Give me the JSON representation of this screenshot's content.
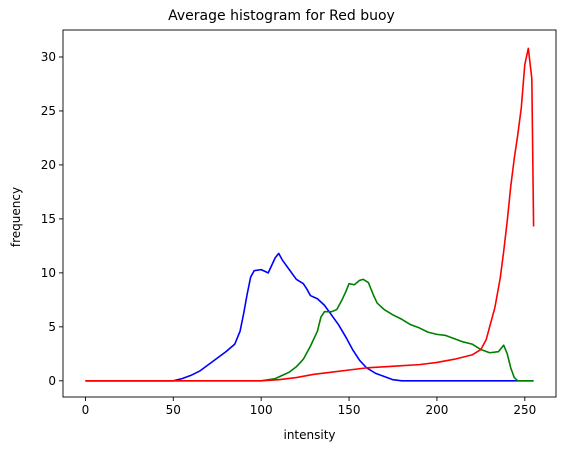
{
  "chart_data": {
    "type": "line",
    "title": "Average histogram for Red buoy",
    "xlabel": "intensity",
    "ylabel": "frequency",
    "xlim": [
      -12.75,
      267.75
    ],
    "ylim": [
      -1.5,
      32.5
    ],
    "xticks": [
      0,
      50,
      100,
      150,
      200,
      250
    ],
    "yticks": [
      0,
      5,
      10,
      15,
      20,
      25,
      30
    ],
    "grid": false,
    "series": [
      {
        "color": "#0000ff",
        "points": [
          [
            0,
            0
          ],
          [
            50,
            0
          ],
          [
            55,
            0.2
          ],
          [
            60,
            0.5
          ],
          [
            65,
            0.9
          ],
          [
            70,
            1.5
          ],
          [
            75,
            2.1
          ],
          [
            80,
            2.7
          ],
          [
            85,
            3.4
          ],
          [
            88,
            4.6
          ],
          [
            90,
            6.2
          ],
          [
            92,
            8.0
          ],
          [
            94,
            9.6
          ],
          [
            96,
            10.2
          ],
          [
            100,
            10.3
          ],
          [
            104,
            10.0
          ],
          [
            108,
            11.4
          ],
          [
            110,
            11.8
          ],
          [
            112,
            11.2
          ],
          [
            116,
            10.3
          ],
          [
            120,
            9.4
          ],
          [
            124,
            9.0
          ],
          [
            126,
            8.5
          ],
          [
            128,
            7.9
          ],
          [
            132,
            7.6
          ],
          [
            136,
            7.0
          ],
          [
            140,
            6.1
          ],
          [
            144,
            5.2
          ],
          [
            148,
            4.1
          ],
          [
            152,
            2.9
          ],
          [
            156,
            1.9
          ],
          [
            160,
            1.2
          ],
          [
            165,
            0.7
          ],
          [
            170,
            0.4
          ],
          [
            175,
            0.1
          ],
          [
            180,
            0
          ],
          [
            255,
            0
          ]
        ]
      },
      {
        "color": "#008000",
        "points": [
          [
            0,
            0
          ],
          [
            100,
            0
          ],
          [
            108,
            0.2
          ],
          [
            112,
            0.5
          ],
          [
            116,
            0.8
          ],
          [
            120,
            1.3
          ],
          [
            124,
            2.0
          ],
          [
            128,
            3.2
          ],
          [
            132,
            4.6
          ],
          [
            134,
            5.9
          ],
          [
            136,
            6.4
          ],
          [
            140,
            6.4
          ],
          [
            143,
            6.6
          ],
          [
            146,
            7.5
          ],
          [
            148,
            8.2
          ],
          [
            150,
            9.0
          ],
          [
            153,
            8.9
          ],
          [
            156,
            9.3
          ],
          [
            158,
            9.4
          ],
          [
            161,
            9.1
          ],
          [
            164,
            7.9
          ],
          [
            166,
            7.2
          ],
          [
            170,
            6.6
          ],
          [
            175,
            6.1
          ],
          [
            180,
            5.7
          ],
          [
            185,
            5.2
          ],
          [
            190,
            4.9
          ],
          [
            195,
            4.5
          ],
          [
            200,
            4.3
          ],
          [
            205,
            4.2
          ],
          [
            210,
            3.9
          ],
          [
            215,
            3.6
          ],
          [
            220,
            3.4
          ],
          [
            225,
            2.9
          ],
          [
            230,
            2.6
          ],
          [
            235,
            2.7
          ],
          [
            237,
            3.1
          ],
          [
            238,
            3.3
          ],
          [
            240,
            2.5
          ],
          [
            242,
            1.2
          ],
          [
            244,
            0.3
          ],
          [
            246,
            0
          ],
          [
            255,
            0
          ]
        ]
      },
      {
        "color": "#ff0000",
        "points": [
          [
            0,
            0
          ],
          [
            100,
            0
          ],
          [
            110,
            0.1
          ],
          [
            120,
            0.3
          ],
          [
            130,
            0.6
          ],
          [
            140,
            0.8
          ],
          [
            150,
            1.0
          ],
          [
            160,
            1.2
          ],
          [
            170,
            1.3
          ],
          [
            180,
            1.4
          ],
          [
            190,
            1.5
          ],
          [
            200,
            1.7
          ],
          [
            210,
            2.0
          ],
          [
            220,
            2.4
          ],
          [
            225,
            2.9
          ],
          [
            228,
            3.8
          ],
          [
            230,
            5.0
          ],
          [
            233,
            6.8
          ],
          [
            236,
            9.5
          ],
          [
            238,
            12.0
          ],
          [
            240,
            14.8
          ],
          [
            242,
            18.0
          ],
          [
            244,
            20.6
          ],
          [
            246,
            22.8
          ],
          [
            248,
            25.3
          ],
          [
            250,
            29.3
          ],
          [
            252,
            30.8
          ],
          [
            254,
            28.0
          ],
          [
            255,
            14.3
          ]
        ]
      }
    ]
  }
}
